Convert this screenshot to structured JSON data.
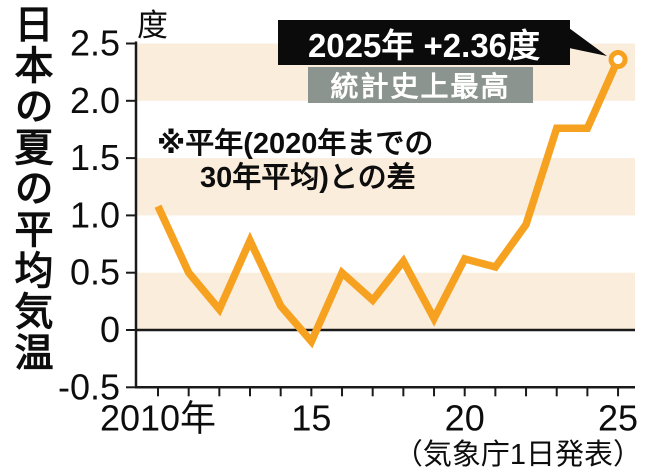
{
  "title": "日本の夏の平均気温",
  "note": {
    "line1": "※平年(2020年までの",
    "line2": "30年平均)との差"
  },
  "callout": {
    "main": "2025年 +2.36度",
    "sub": "統計史上最高"
  },
  "source": "（気象庁1日発表）",
  "colors": {
    "line": "#f6a220",
    "band": "#faeddc",
    "axis": "#1a1a1a",
    "callout_bg": "#0b0b0b",
    "callout_sub_bg": "#8b948e",
    "marker_fill": "#ffffff"
  },
  "chart_data": {
    "type": "line",
    "title": "日本の夏の平均気温",
    "ylabel": "度",
    "xlabel": "年",
    "ylim": [
      -0.5,
      2.5
    ],
    "grid": "alternating horizontal bands",
    "legend": "none",
    "x": [
      2010,
      2011,
      2012,
      2013,
      2014,
      2015,
      2016,
      2017,
      2018,
      2019,
      2020,
      2021,
      2022,
      2023,
      2024,
      2025
    ],
    "values": [
      1.08,
      0.5,
      0.18,
      0.78,
      0.21,
      -0.1,
      0.5,
      0.26,
      0.6,
      0.1,
      0.62,
      0.55,
      0.92,
      1.76,
      1.76,
      2.36
    ],
    "y_ticks": [
      {
        "v": 2.5,
        "label": "2.5"
      },
      {
        "v": 2.0,
        "label": "2.0"
      },
      {
        "v": 1.5,
        "label": "1.5"
      },
      {
        "v": 1.0,
        "label": "1.0"
      },
      {
        "v": 0.5,
        "label": "0.5"
      },
      {
        "v": 0.0,
        "label": "0"
      },
      {
        "v": -0.5,
        "label": "-0.5"
      }
    ],
    "x_tick_labels": [
      {
        "year": 2010,
        "label": "2010年"
      },
      {
        "year": 2015,
        "label": "15"
      },
      {
        "year": 2020,
        "label": "20"
      },
      {
        "year": 2025,
        "label": "25"
      }
    ],
    "shaded_value_bands": [
      [
        2.0,
        2.5
      ],
      [
        1.0,
        1.5
      ],
      [
        0.0,
        0.5
      ]
    ],
    "highlight_point": {
      "year": 2025,
      "value": 2.36
    }
  }
}
